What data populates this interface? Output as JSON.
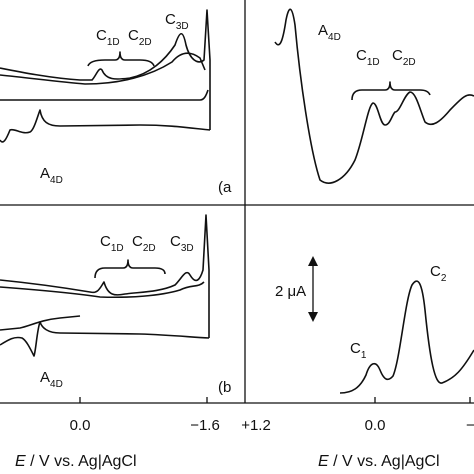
{
  "panel_a": {
    "label": "(a",
    "peaks": [
      {
        "main": "C",
        "sub": "1D"
      },
      {
        "main": "C",
        "sub": "2D"
      },
      {
        "main": "C",
        "sub": "3D"
      },
      {
        "main": "A",
        "sub": "4D"
      }
    ]
  },
  "panel_a_right": {
    "peaks": [
      {
        "main": "A",
        "sub": "4D"
      },
      {
        "main": "C",
        "sub": "1D"
      },
      {
        "main": "C",
        "sub": "2D"
      }
    ]
  },
  "panel_b": {
    "label": "(b",
    "peaks": [
      {
        "main": "C",
        "sub": "1D"
      },
      {
        "main": "C",
        "sub": "2D"
      },
      {
        "main": "C",
        "sub": "3D"
      },
      {
        "main": "A",
        "sub": "4D"
      }
    ]
  },
  "panel_b_right": {
    "scale": "2 μA",
    "peaks": [
      {
        "main": "C",
        "sub": "1"
      },
      {
        "main": "C",
        "sub": "2"
      }
    ]
  },
  "left_axis": {
    "ticks": [
      "0.0",
      "−1.6"
    ],
    "title_var": "E",
    "title": " / V vs. Ag|AgCl"
  },
  "right_axis": {
    "ticks": [
      "+1.2",
      "0.0",
      "−"
    ],
    "title_var": "E",
    "title": " / V vs. Ag|AgCl"
  }
}
